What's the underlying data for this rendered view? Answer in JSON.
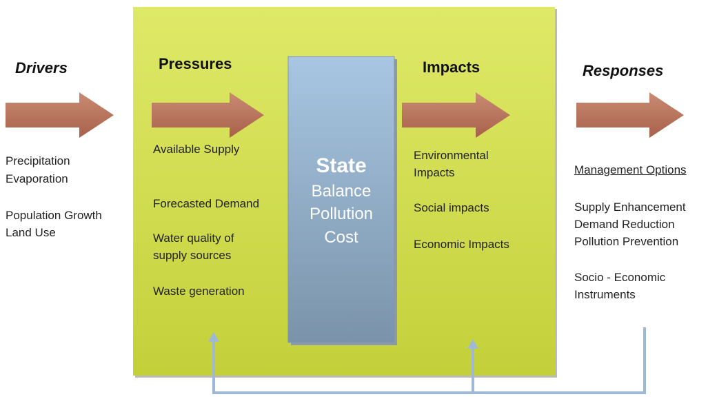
{
  "drivers": {
    "title": "Drivers",
    "items": [
      "Precipitation",
      "Evaporation",
      "Population Growth",
      "Land Use"
    ]
  },
  "pressures": {
    "title": "Pressures",
    "items": [
      "Available Supply",
      "Forecasted Demand",
      "Water quality of supply sources",
      "Waste generation"
    ]
  },
  "state": {
    "title": "State",
    "items": [
      "Balance",
      "Pollution",
      "Cost"
    ]
  },
  "impacts": {
    "title": "Impacts",
    "items": [
      "Environmental Impacts",
      "Social impacts",
      "Economic Impacts"
    ]
  },
  "responses": {
    "title": "Responses",
    "subtitle": "Management Options",
    "items": [
      "Supply Enhancement",
      "Demand Reduction",
      "Pollution Prevention",
      "Socio - Economic Instruments"
    ]
  }
}
